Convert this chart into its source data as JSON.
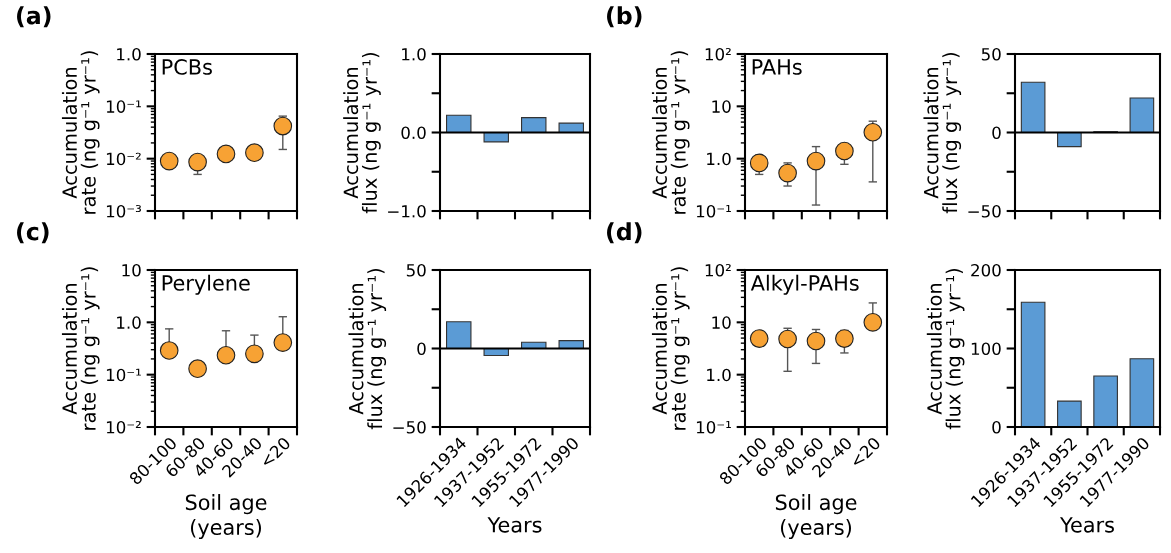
{
  "chart_data": [
    {
      "type": "scatter",
      "title": "(a)",
      "ylabel": "Accumulation\nrate (ng g⁻¹ yr⁻¹)",
      "categories": [
        null,
        null,
        null,
        null,
        null
      ],
      "values": [
        0.009,
        0.0086,
        0.0123,
        0.013,
        0.042
      ],
      "errors": [
        null,
        [
          0.005,
          0.0086
        ],
        null,
        null,
        [
          0.015,
          0.065
        ]
      ],
      "color": "#f7a234",
      "marker": "circle",
      "log": true,
      "ylim": [
        0.001,
        1
      ],
      "yticks": [
        {
          "value": 0.001,
          "label": "10⁻³"
        },
        {
          "value": 0.01,
          "label": "10⁻²"
        },
        {
          "value": 0.1,
          "label": "10⁻¹"
        },
        {
          "value": 1,
          "label": "1.0"
        }
      ],
      "annotations": [
        "PCBs"
      ],
      "tick_labels": "y"
    },
    {
      "type": "bar",
      "ylabel": "Accumulation\nflux (ng g⁻¹ yr⁻¹)",
      "categories": [
        null,
        null,
        null,
        null
      ],
      "values": [
        0.22,
        -0.12,
        0.19,
        0.12
      ],
      "color": "#5b9bd5",
      "ylim": [
        -1,
        1
      ],
      "yticks": [
        {
          "value": -1,
          "label": "−1.0"
        },
        {
          "value": -0.5,
          "label": null
        },
        {
          "value": 0,
          "label": "0.0"
        },
        {
          "value": 0.5,
          "label": null
        },
        {
          "value": 1,
          "label": "1.0"
        }
      ],
      "ref_lines": [
        {
          "axis": "y",
          "value": 0
        }
      ],
      "tick_labels": "y"
    },
    {
      "type": "scatter",
      "title": "(b)",
      "ylabel": "Accumulation\nrate (ng g⁻¹ yr⁻¹)",
      "categories": [
        null,
        null,
        null,
        null,
        null
      ],
      "values": [
        0.83,
        0.53,
        0.9,
        1.4,
        3.2
      ],
      "errors": [
        [
          0.5,
          1.16
        ],
        [
          0.3,
          0.83
        ],
        [
          0.13,
          1.7
        ],
        [
          0.78,
          1.95
        ],
        [
          0.36,
          5.2
        ]
      ],
      "color": "#f7a234",
      "marker": "circle",
      "log": true,
      "ylim": [
        0.1,
        100
      ],
      "yticks": [
        {
          "value": 0.1,
          "label": "10⁻¹"
        },
        {
          "value": 1,
          "label": "1.0"
        },
        10,
        {
          "value": 100,
          "label": "10²"
        }
      ],
      "annotations": [
        "PAHs"
      ],
      "tick_labels": "y"
    },
    {
      "type": "bar",
      "ylabel": "Accumulation\nflux (ng g⁻¹ yr⁻¹)",
      "categories": [
        null,
        null,
        null,
        null
      ],
      "values": [
        32,
        -9,
        0.5,
        22
      ],
      "color": "#5b9bd5",
      "ylim": [
        -50,
        50
      ],
      "yticks": [
        {
          "value": -50,
          "label": "−50"
        },
        {
          "value": -25,
          "label": null
        },
        0,
        {
          "value": 25,
          "label": null
        },
        50
      ],
      "ref_lines": [
        {
          "axis": "y",
          "value": 0
        }
      ],
      "tick_labels": "y"
    },
    {
      "type": "scatter",
      "title": "(c)",
      "ylabel": "Accumulation\nrate (ng g⁻¹ yr⁻¹)",
      "xlabel": "Soil age\n(years)",
      "categories": [
        "80-100",
        "60-80",
        "40-60",
        "20-40",
        "<20"
      ],
      "values": [
        0.29,
        0.13,
        0.235,
        0.25,
        0.41
      ],
      "errors": [
        [
          0.29,
          0.75
        ],
        [
          0.13,
          0.18
        ],
        [
          0.235,
          0.69
        ],
        [
          0.25,
          0.57
        ],
        [
          0.41,
          1.28
        ]
      ],
      "color": "#f7a234",
      "marker": "circle",
      "log": true,
      "ylim": [
        0.01,
        10
      ],
      "yticks": [
        {
          "value": 0.01,
          "label": "10⁻²"
        },
        {
          "value": 0.1,
          "label": "10⁻¹"
        },
        {
          "value": 1,
          "label": "1.0"
        },
        10
      ],
      "annotations": [
        "Perylene"
      ]
    },
    {
      "type": "bar",
      "ylabel": "Accumulation\nflux (ng g⁻¹ yr⁻¹)",
      "xlabel": "Years",
      "categories": [
        "1926-1934",
        "1937-1952",
        "1955-1972",
        "1977-1990"
      ],
      "values": [
        17,
        -4.5,
        4,
        5
      ],
      "color": "#5b9bd5",
      "ylim": [
        -50,
        50
      ],
      "yticks": [
        {
          "value": -50,
          "label": "−50"
        },
        {
          "value": -25,
          "label": null
        },
        0,
        {
          "value": 25,
          "label": null
        },
        50
      ],
      "ref_lines": [
        {
          "axis": "y",
          "value": 0
        }
      ]
    },
    {
      "type": "scatter",
      "title": "(d)",
      "ylabel": "Accumulation\nrate (ng g⁻¹ yr⁻¹)",
      "xlabel": "Soil age\n(years)",
      "categories": [
        "80-100",
        "60-80",
        "40-60",
        "20-40",
        "<20"
      ],
      "values": [
        4.9,
        4.8,
        4.4,
        4.9,
        10
      ],
      "errors": [
        null,
        [
          1.16,
          7.7
        ],
        [
          1.64,
          7.3
        ],
        [
          2.6,
          7.0
        ],
        [
          10,
          23.5
        ]
      ],
      "color": "#f7a234",
      "marker": "circle",
      "log": true,
      "ylim": [
        0.1,
        100
      ],
      "yticks": [
        {
          "value": 0.1,
          "label": "10⁻¹"
        },
        {
          "value": 1,
          "label": "1.0"
        },
        10,
        {
          "value": 100,
          "label": "10²"
        }
      ],
      "annotations": [
        "Alkyl-PAHs"
      ]
    },
    {
      "type": "bar",
      "ylabel": "Accumulation\nflux (ng g⁻¹ yr⁻¹)",
      "xlabel": "Years",
      "categories": [
        "1926-1934",
        "1937-1952",
        "1955-1972",
        "1977-1990"
      ],
      "values": [
        159,
        33,
        65,
        87
      ],
      "color": "#5b9bd5",
      "ylim": [
        0,
        200
      ],
      "yticks": [
        0,
        {
          "value": 50,
          "label": null
        },
        100,
        {
          "value": 150,
          "label": null
        },
        200
      ]
    }
  ]
}
